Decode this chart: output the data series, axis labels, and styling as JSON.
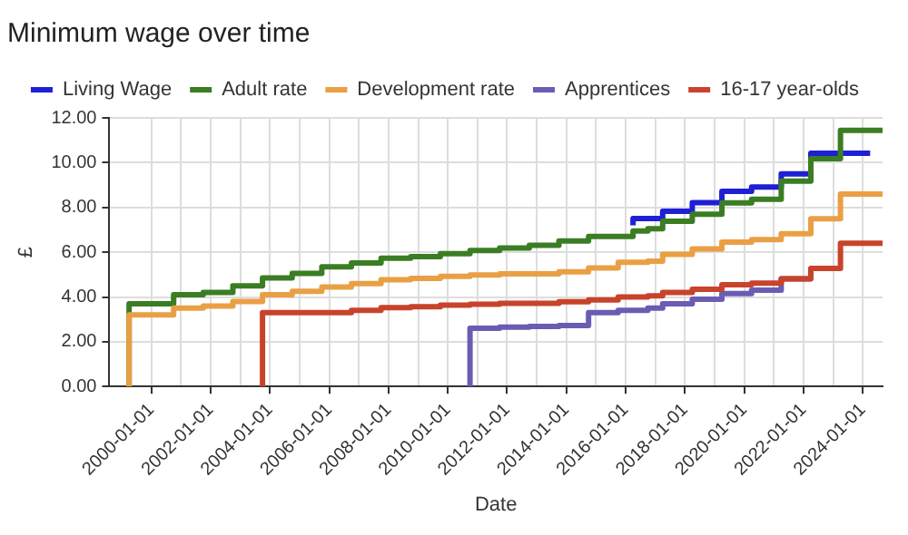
{
  "chart_data": {
    "type": "step",
    "title": "Minimum wage over time",
    "xlabel": "Date",
    "ylabel": "£",
    "xlim": [
      "1998-08-01",
      "2024-09-01"
    ],
    "xticks": [
      "2000-01-01",
      {
        "value": "2001-01-01",
        "label": null
      },
      "2002-01-01",
      {
        "value": "2003-01-01",
        "label": null
      },
      "2004-01-01",
      {
        "value": "2005-01-01",
        "label": null
      },
      "2006-01-01",
      {
        "value": "2007-01-01",
        "label": null
      },
      "2008-01-01",
      {
        "value": "2009-01-01",
        "label": null
      },
      "2010-01-01",
      {
        "value": "2011-01-01",
        "label": null
      },
      "2012-01-01",
      {
        "value": "2013-01-01",
        "label": null
      },
      "2014-01-01",
      {
        "value": "2015-01-01",
        "label": null
      },
      "2016-01-01",
      {
        "value": "2017-01-01",
        "label": null
      },
      "2018-01-01",
      {
        "value": "2019-01-01",
        "label": null
      },
      "2020-01-01",
      {
        "value": "2021-01-01",
        "label": null
      },
      "2022-01-01",
      {
        "value": "2023-01-01",
        "label": null
      },
      "2024-01-01"
    ],
    "ylim": [
      0,
      12
    ],
    "yticks": [
      {
        "value": 0,
        "label": "0.00"
      },
      {
        "value": 2,
        "label": "2.00"
      },
      {
        "value": 4,
        "label": "4.00"
      },
      {
        "value": 6,
        "label": "6.00"
      },
      {
        "value": 8,
        "label": "8.00"
      },
      {
        "value": 10,
        "label": "10.00"
      },
      {
        "value": 12,
        "label": "12.00"
      }
    ],
    "grid": true,
    "legend": "top",
    "marker": "none",
    "line_style": "solid",
    "series": [
      {
        "name": "Living Wage",
        "color": "#1f1fd6",
        "x": [
          "2016-04-01",
          "2017-04-01",
          "2018-04-01",
          "2019-04-01",
          "2020-04-01",
          "2021-04-01",
          "2022-04-01",
          "2023-04-01",
          "2024-04-01"
        ],
        "values": [
          7.2,
          7.5,
          7.83,
          8.21,
          8.72,
          8.91,
          9.5,
          10.42,
          10.42
        ]
      },
      {
        "name": "Adult rate",
        "color": "#3b7d23",
        "x": [
          "1999-04-01",
          "1999-04-01",
          "2000-10-01",
          "2001-10-01",
          "2002-10-01",
          "2003-10-01",
          "2004-10-01",
          "2005-10-01",
          "2006-10-01",
          "2007-10-01",
          "2008-10-01",
          "2009-10-01",
          "2010-10-01",
          "2011-10-01",
          "2012-10-01",
          "2013-10-01",
          "2014-10-01",
          "2015-10-01",
          "2016-04-01",
          "2016-10-01",
          "2017-04-01",
          "2018-04-01",
          "2019-04-01",
          "2020-04-01",
          "2021-04-01",
          "2022-04-01",
          "2023-04-01",
          "2024-04-01",
          "2024-09-01"
        ],
        "values": [
          0,
          3.6,
          3.7,
          4.1,
          4.2,
          4.5,
          4.85,
          5.05,
          5.35,
          5.52,
          5.73,
          5.8,
          5.93,
          6.08,
          6.19,
          6.31,
          6.5,
          6.7,
          6.7,
          6.95,
          7.05,
          7.38,
          7.7,
          8.2,
          8.36,
          9.18,
          10.18,
          11.44,
          11.44
        ]
      },
      {
        "name": "Development rate",
        "color": "#e9a044",
        "x": [
          "1999-04-01",
          "1999-04-01",
          "2000-10-01",
          "2001-10-01",
          "2002-10-01",
          "2003-10-01",
          "2004-10-01",
          "2005-10-01",
          "2006-10-01",
          "2007-10-01",
          "2008-10-01",
          "2009-10-01",
          "2010-10-01",
          "2011-10-01",
          "2013-10-01",
          "2014-10-01",
          "2015-10-01",
          "2016-10-01",
          "2017-04-01",
          "2018-04-01",
          "2019-04-01",
          "2020-04-01",
          "2021-04-01",
          "2022-04-01",
          "2023-04-01",
          "2024-04-01",
          "2024-09-01"
        ],
        "values": [
          0,
          3.0,
          3.2,
          3.5,
          3.6,
          3.8,
          4.1,
          4.25,
          4.45,
          4.6,
          4.77,
          4.83,
          4.92,
          4.98,
          5.03,
          5.13,
          5.3,
          5.55,
          5.6,
          5.9,
          6.15,
          6.45,
          6.56,
          6.83,
          7.49,
          8.6,
          8.6
        ]
      },
      {
        "name": "Apprentices",
        "color": "#6b5cb3",
        "x": [
          "2010-10-01",
          "2010-10-01",
          "2011-10-01",
          "2012-10-01",
          "2013-10-01",
          "2014-10-01",
          "2015-10-01",
          "2016-10-01",
          "2017-04-01",
          "2018-04-01",
          "2019-04-01",
          "2020-04-01",
          "2021-04-01",
          "2022-04-01"
        ],
        "values": [
          0,
          2.5,
          2.6,
          2.65,
          2.68,
          2.73,
          3.3,
          3.4,
          3.5,
          3.7,
          3.9,
          4.15,
          4.3,
          4.81
        ]
      },
      {
        "name": "16-17 year-olds",
        "color": "#c8432b",
        "x": [
          "2003-10-01",
          "2003-10-01",
          "2006-10-01",
          "2007-10-01",
          "2008-10-01",
          "2009-10-01",
          "2010-10-01",
          "2011-10-01",
          "2013-10-01",
          "2014-10-01",
          "2015-10-01",
          "2016-10-01",
          "2017-04-01",
          "2018-04-01",
          "2019-04-01",
          "2020-04-01",
          "2021-04-01",
          "2022-04-01",
          "2023-04-01",
          "2024-04-01",
          "2024-09-01"
        ],
        "values": [
          0,
          3.0,
          3.3,
          3.4,
          3.53,
          3.57,
          3.64,
          3.68,
          3.72,
          3.79,
          3.87,
          4.0,
          4.05,
          4.2,
          4.35,
          4.55,
          4.62,
          4.81,
          5.28,
          6.4,
          6.4
        ]
      }
    ]
  }
}
